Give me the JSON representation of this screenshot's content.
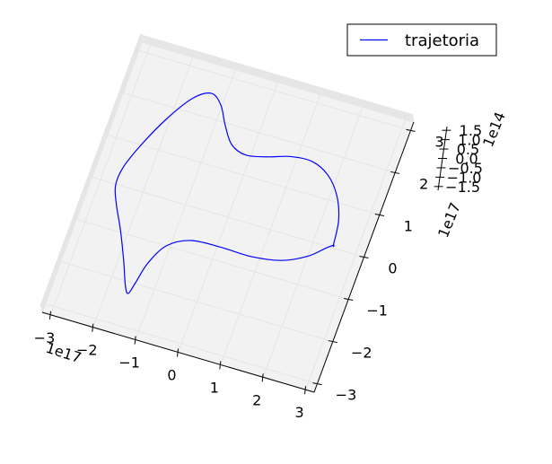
{
  "chart_data": {
    "type": "line",
    "projection": "3d",
    "title": "",
    "grid": true,
    "legend": {
      "placement": "top-right",
      "entries": [
        "trajetoria"
      ]
    },
    "colors": {
      "series": "#0000ff",
      "pane": "#f2f2f2",
      "grid": "#e5e5e5",
      "axis_edge": "#000000"
    },
    "axes": {
      "x": {
        "xlim": [
          -3.2,
          3.2
        ],
        "ticks": [
          -3,
          -2,
          -1,
          0,
          1,
          2,
          3
        ],
        "tick_labels": [
          "−3",
          "−2",
          "−1",
          "0",
          "1",
          "2",
          "3"
        ],
        "offset_label": "1e17"
      },
      "y": {
        "ylim": [
          -3.2,
          3.2
        ],
        "ticks": [
          -3,
          -2,
          -1,
          0,
          1,
          2,
          3
        ],
        "tick_labels": [
          "−3",
          "−2",
          "−1",
          "0",
          "1",
          "2",
          "3"
        ],
        "offset_label": "1e17"
      },
      "z": {
        "zlim": [
          -1.7,
          1.7
        ],
        "ticks": [
          -1.5,
          -1.0,
          -0.5,
          0.0,
          0.5,
          1.0,
          1.5
        ],
        "tick_labels": [
          "−1.5",
          "−1.0",
          "−0.5",
          "0.0",
          "0.5",
          "1.0",
          "1.5"
        ],
        "offset_label": "1e14"
      }
    },
    "series": [
      {
        "name": "trajetoria",
        "x": [
          2.5,
          2.423,
          2.2,
          1.852,
          1.411,
          0.917,
          0.409,
          -0.063,
          -0.445,
          -0.739,
          -1.0,
          -1.297,
          -1.655,
          -2.04,
          -2.378,
          -2.58,
          -2.59,
          -2.414,
          -2.12,
          -1.814,
          -1.587,
          -1.464,
          -1.399,
          -1.292,
          -1.036,
          -0.566,
          0.096,
          0.837,
          1.516,
          2.033,
          2.352,
          2.5
        ],
        "y": [
          0.0,
          0.545,
          1.047,
          1.427,
          1.618,
          1.592,
          1.442,
          1.356,
          1.5,
          1.88,
          2.3,
          2.491,
          2.269,
          1.67,
          0.935,
          0.325,
          -0.111,
          -0.523,
          -1.057,
          -1.687,
          -2.2,
          -2.357,
          -2.09,
          -1.567,
          -1.07,
          -0.798,
          -0.745,
          -0.747,
          -0.633,
          -0.383,
          -0.107,
          0.0
        ],
        "z": [
          0.0,
          0.191,
          0.384,
          0.539,
          0.6,
          0.539,
          0.384,
          0.191,
          0.0,
          -0.191,
          -0.384,
          -0.539,
          -0.6,
          -0.539,
          -0.384,
          -0.191,
          0.0,
          0.191,
          0.384,
          0.539,
          0.6,
          0.539,
          0.384,
          0.191,
          0.0,
          -0.191,
          -0.384,
          -0.539,
          -0.6,
          -0.539,
          -0.384,
          -0.191
        ]
      }
    ]
  }
}
